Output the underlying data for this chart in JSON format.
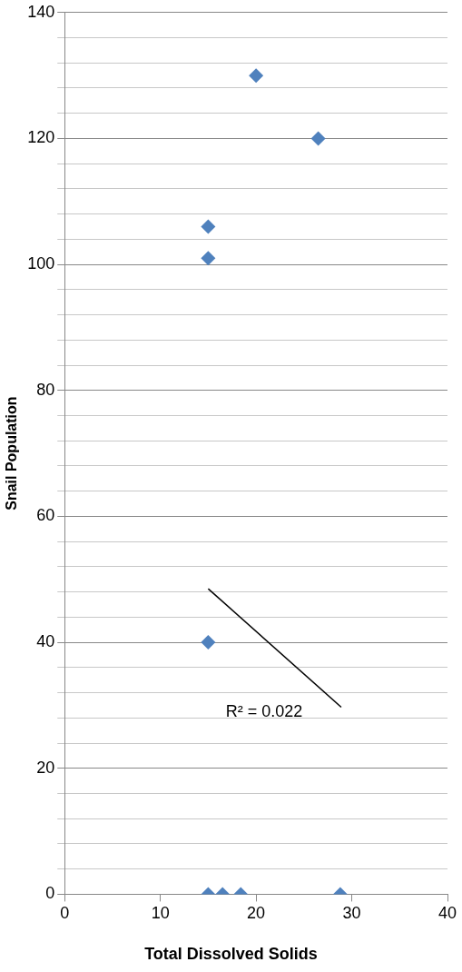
{
  "chart_data": {
    "type": "scatter",
    "xlabel": "Total Dissolved Solids",
    "ylabel": "Snail Population",
    "xlim": [
      0,
      40
    ],
    "xticks": [
      0,
      10,
      20,
      30,
      40
    ],
    "ylim": [
      0,
      140
    ],
    "yticks": [
      0,
      {
        "value": 4,
        "label": null
      },
      {
        "value": 8,
        "label": null
      },
      {
        "value": 12,
        "label": null
      },
      {
        "value": 16,
        "label": null
      },
      20,
      {
        "value": 24,
        "label": null
      },
      {
        "value": 28,
        "label": null
      },
      {
        "value": 32,
        "label": null
      },
      {
        "value": 36,
        "label": null
      },
      40,
      {
        "value": 44,
        "label": null
      },
      {
        "value": 48,
        "label": null
      },
      {
        "value": 52,
        "label": null
      },
      {
        "value": 56,
        "label": null
      },
      60,
      {
        "value": 64,
        "label": null
      },
      {
        "value": 68,
        "label": null
      },
      {
        "value": 72,
        "label": null
      },
      {
        "value": 76,
        "label": null
      },
      80,
      {
        "value": 84,
        "label": null
      },
      {
        "value": 88,
        "label": null
      },
      {
        "value": 92,
        "label": null
      },
      {
        "value": 96,
        "label": null
      },
      100,
      {
        "value": 104,
        "label": null
      },
      {
        "value": 108,
        "label": null
      },
      {
        "value": 112,
        "label": null
      },
      {
        "value": 116,
        "label": null
      },
      120,
      {
        "value": 124,
        "label": null
      },
      {
        "value": 128,
        "label": null
      },
      {
        "value": 132,
        "label": null
      },
      {
        "value": 136,
        "label": null
      },
      140
    ],
    "grid": "y",
    "marker": "diamond",
    "series": [
      {
        "color": "#4f81bd",
        "x": [
          20,
          26.5,
          15,
          15,
          15,
          15,
          16.5,
          18.4,
          28.8
        ],
        "values": [
          130,
          120,
          106,
          101,
          40,
          0,
          0,
          0,
          0
        ]
      },
      {
        "type": "line",
        "color": "#000000",
        "marker": "none",
        "x": [
          15,
          28.9
        ],
        "values": [
          48.5,
          29.7
        ]
      }
    ],
    "annotations": [
      "R² = 0.022"
    ]
  }
}
